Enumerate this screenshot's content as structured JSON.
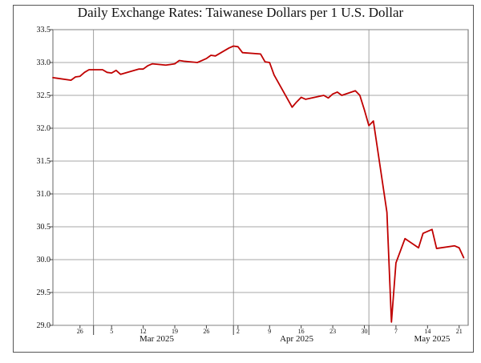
{
  "chart_data": {
    "type": "line",
    "title": "Daily Exchange Rates: Taiwanese Dollars per 1 U.S. Dollar",
    "xlabel": "",
    "ylabel": "",
    "ylim": [
      29.0,
      33.5
    ],
    "y_ticks": [
      "29.0",
      "29.5",
      "30.0",
      "30.5",
      "31.0",
      "31.5",
      "32.0",
      "32.5",
      "33.0",
      "33.5"
    ],
    "x_range": [
      "2025-02-20",
      "2025-05-23"
    ],
    "x_minor_ticks": [
      {
        "date": "2025-02-26",
        "label": "26"
      },
      {
        "date": "2025-03-05",
        "label": "5"
      },
      {
        "date": "2025-03-12",
        "label": "12"
      },
      {
        "date": "2025-03-19",
        "label": "19"
      },
      {
        "date": "2025-03-26",
        "label": "26"
      },
      {
        "date": "2025-04-02",
        "label": "2"
      },
      {
        "date": "2025-04-09",
        "label": "9"
      },
      {
        "date": "2025-04-16",
        "label": "16"
      },
      {
        "date": "2025-04-23",
        "label": "23"
      },
      {
        "date": "2025-04-30",
        "label": "30"
      },
      {
        "date": "2025-05-07",
        "label": "7"
      },
      {
        "date": "2025-05-14",
        "label": "14"
      },
      {
        "date": "2025-05-21",
        "label": "21"
      }
    ],
    "x_month_labels": [
      {
        "date": "2025-03-15",
        "label": "Mar 2025"
      },
      {
        "date": "2025-04-15",
        "label": "Apr 2025"
      },
      {
        "date": "2025-05-15",
        "label": "May 2025"
      }
    ],
    "x_month_gridlines": [
      "2025-03-01",
      "2025-04-01",
      "2025-05-01"
    ],
    "grid": true,
    "line_color": "#c00000",
    "series": [
      {
        "name": "",
        "x": [
          "2025-02-20",
          "2025-02-21",
          "2025-02-24",
          "2025-02-25",
          "2025-02-26",
          "2025-02-27",
          "2025-02-28",
          "2025-03-03",
          "2025-03-04",
          "2025-03-05",
          "2025-03-06",
          "2025-03-07",
          "2025-03-10",
          "2025-03-11",
          "2025-03-12",
          "2025-03-13",
          "2025-03-14",
          "2025-03-17",
          "2025-03-18",
          "2025-03-19",
          "2025-03-20",
          "2025-03-21",
          "2025-03-24",
          "2025-03-25",
          "2025-03-26",
          "2025-03-27",
          "2025-03-28",
          "2025-03-31",
          "2025-04-01",
          "2025-04-02",
          "2025-04-03",
          "2025-04-07",
          "2025-04-08",
          "2025-04-09",
          "2025-04-10",
          "2025-04-14",
          "2025-04-15",
          "2025-04-16",
          "2025-04-17",
          "2025-04-21",
          "2025-04-22",
          "2025-04-23",
          "2025-04-24",
          "2025-04-25",
          "2025-04-28",
          "2025-04-29",
          "2025-04-30",
          "2025-05-01",
          "2025-05-02",
          "2025-05-05",
          "2025-05-06",
          "2025-05-07",
          "2025-05-09",
          "2025-05-12",
          "2025-05-13",
          "2025-05-15",
          "2025-05-16",
          "2025-05-20",
          "2025-05-21",
          "2025-05-22"
        ],
        "values": [
          32.77,
          32.76,
          32.73,
          32.78,
          32.79,
          32.85,
          32.89,
          32.89,
          32.85,
          32.84,
          32.88,
          32.82,
          32.88,
          32.9,
          32.9,
          32.95,
          32.98,
          32.96,
          32.97,
          32.98,
          33.03,
          33.02,
          33.0,
          33.03,
          33.06,
          33.11,
          33.1,
          33.22,
          33.25,
          33.24,
          33.15,
          33.13,
          33.01,
          33.0,
          32.81,
          32.32,
          32.4,
          32.47,
          32.44,
          32.5,
          32.46,
          32.52,
          32.55,
          32.5,
          32.57,
          32.5,
          32.28,
          32.04,
          32.11,
          30.72,
          29.05,
          29.95,
          30.32,
          30.18,
          30.4,
          30.46,
          30.17,
          30.21,
          30.18,
          30.03
        ]
      }
    ]
  }
}
